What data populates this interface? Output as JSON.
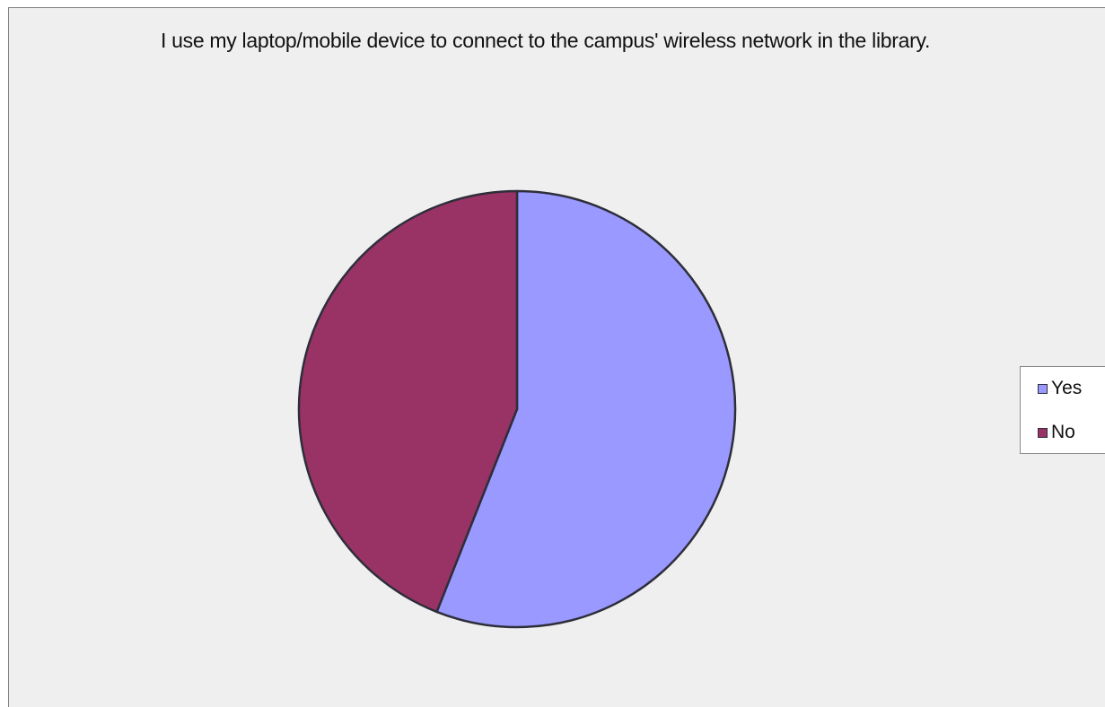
{
  "chart_data": {
    "type": "pie",
    "title": "I use my laptop/mobile device to connect to the campus' wireless network in the library.",
    "categories": [
      "Yes",
      "No"
    ],
    "values": [
      56,
      44
    ],
    "colors": [
      "#9999ff",
      "#993366"
    ],
    "outline_color": "#2e2e3a",
    "legend_position": "right",
    "background": "#efefef"
  }
}
